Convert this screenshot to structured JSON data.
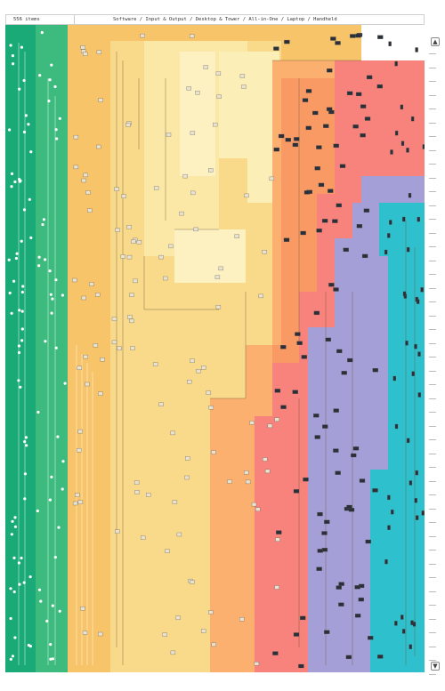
{
  "header": {
    "item_count": "556 items",
    "categories": "Software / Input & Output / Desktop & Tower / All-in-One / Laptop / Handheld"
  },
  "scroll": {
    "up_icon": "chevron-up-icon",
    "down_icon": "chevron-down-icon"
  },
  "bands": [
    {
      "name": "software-band",
      "color": "#1aaa78"
    },
    {
      "name": "input-output-band",
      "color": "#9fd48c"
    },
    {
      "name": "desktop-tower-band",
      "color": "#f6cf6f"
    },
    {
      "name": "all-in-one-band",
      "color": "#f99a65"
    },
    {
      "name": "laptop-band",
      "color": "#a59fd8"
    },
    {
      "name": "handheld-band",
      "color": "#2fc0cd"
    }
  ]
}
